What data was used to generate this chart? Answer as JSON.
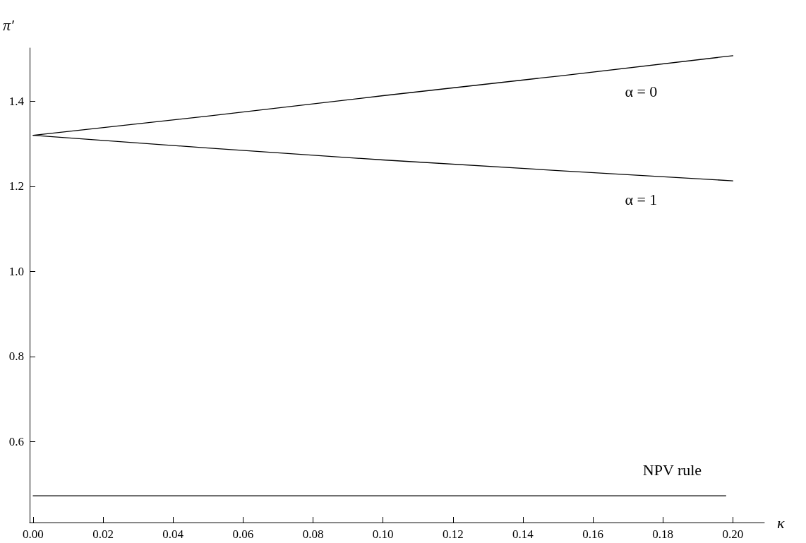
{
  "chart_data": {
    "type": "line",
    "xlabel": "κ",
    "ylabel": "π′",
    "series": [
      {
        "name": "α = 0",
        "color": "#000000",
        "x": [
          0,
          0.05,
          0.1,
          0.15,
          0.2
        ],
        "values": [
          1.32,
          1.365,
          1.413,
          1.459,
          1.507
        ]
      },
      {
        "name": "α = 1",
        "color": "#000000",
        "x": [
          0,
          0.05,
          0.1,
          0.15,
          0.2
        ],
        "values": [
          1.32,
          1.29,
          1.262,
          1.237,
          1.213
        ]
      },
      {
        "name": "NPV rule",
        "color": "#000000",
        "x": [
          0,
          0.198
        ],
        "values": [
          0.473,
          0.473
        ]
      }
    ],
    "xlim": [
      -0.001,
      0.209
    ],
    "xticks": [
      {
        "value": 0,
        "label": "0.00"
      },
      {
        "value": 0.02,
        "label": "0.02"
      },
      {
        "value": 0.04,
        "label": "0.04"
      },
      {
        "value": 0.06,
        "label": "0.06"
      },
      {
        "value": 0.08,
        "label": "0.08"
      },
      {
        "value": 0.1,
        "label": "0.10"
      },
      {
        "value": 0.12,
        "label": "0.12"
      },
      {
        "value": 0.14,
        "label": "0.14"
      },
      {
        "value": 0.16,
        "label": "0.16"
      },
      {
        "value": 0.18,
        "label": "0.18"
      },
      {
        "value": 0.2,
        "label": "0.20"
      }
    ],
    "ylim": [
      0.41,
      1.525
    ],
    "yticks": [
      0.6,
      0.8,
      {
        "value": 1,
        "label": "1.0"
      },
      1.2,
      1.4
    ],
    "grid": false,
    "marker": "none",
    "line_style": "solid"
  }
}
